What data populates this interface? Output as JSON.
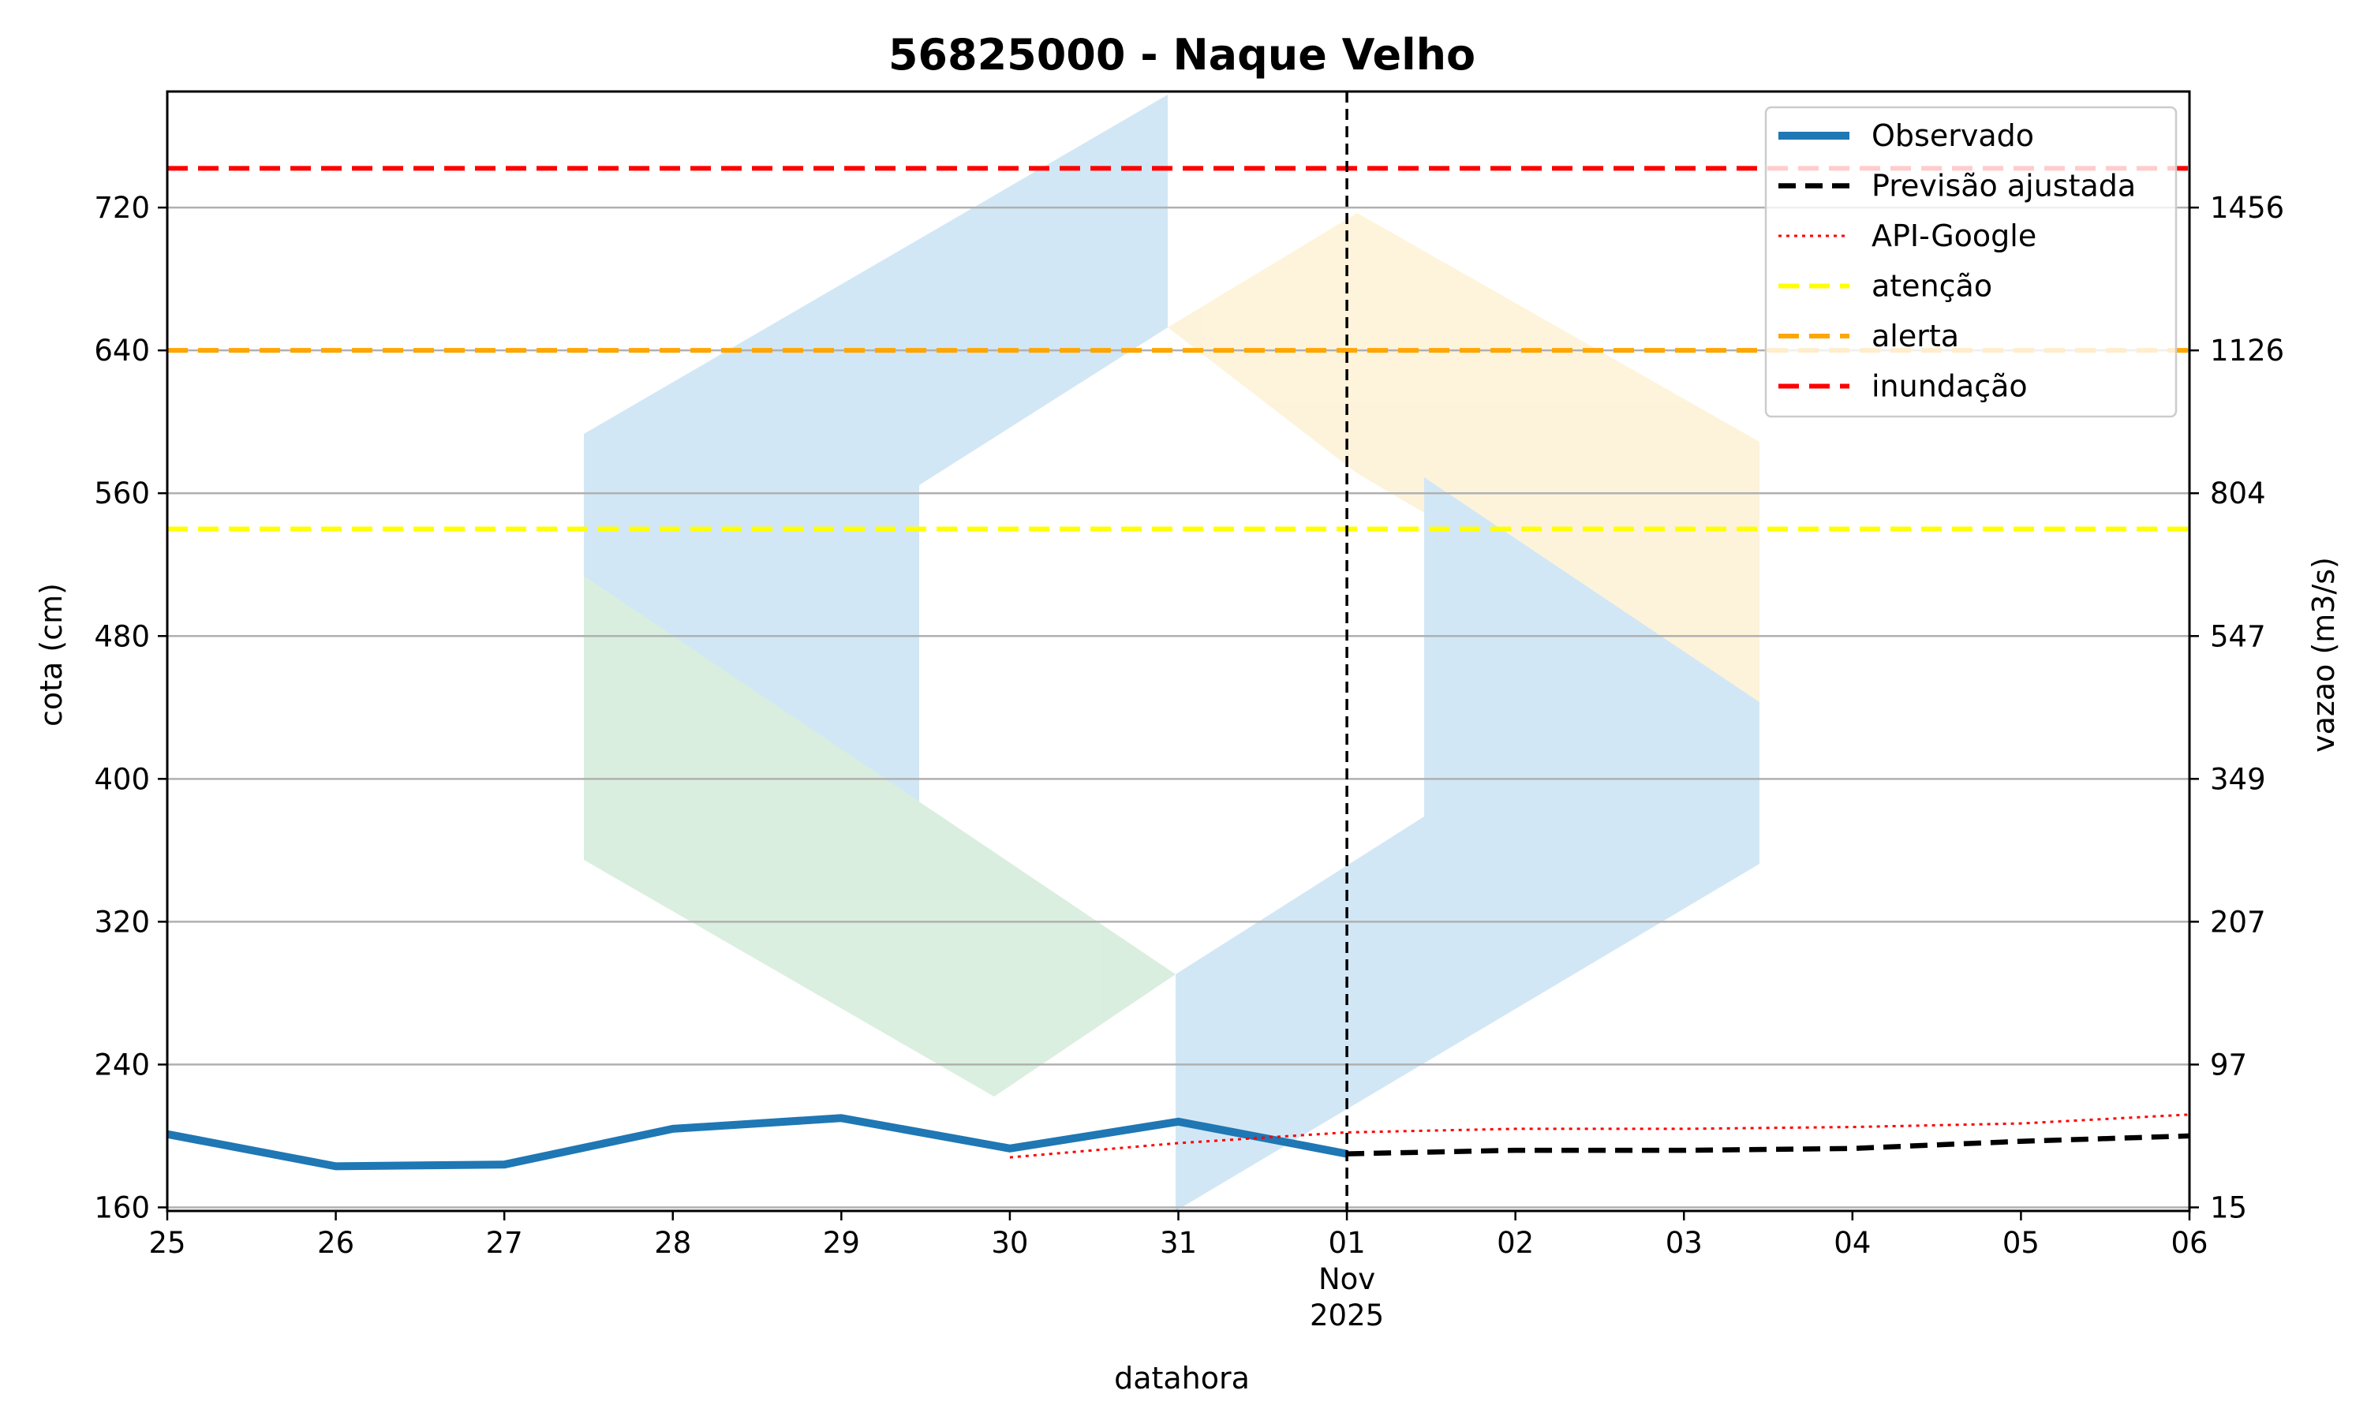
{
  "chart_data": {
    "type": "line",
    "title": "56825000 - Naque Velho",
    "xlabel": "datahora",
    "ylabel": "cota (cm)",
    "y2label": "vazao (m3/s)",
    "ylim": [
      158,
      785
    ],
    "xlim": [
      0,
      12
    ],
    "x_ticks": [
      {
        "x": 0,
        "label": "25"
      },
      {
        "x": 1,
        "label": "26"
      },
      {
        "x": 2,
        "label": "27"
      },
      {
        "x": 3,
        "label": "28"
      },
      {
        "x": 4,
        "label": "29"
      },
      {
        "x": 5,
        "label": "30"
      },
      {
        "x": 6,
        "label": "31"
      },
      {
        "x": 7,
        "label": "01",
        "sub1": "Nov",
        "sub2": "2025"
      },
      {
        "x": 8,
        "label": "02"
      },
      {
        "x": 9,
        "label": "03"
      },
      {
        "x": 10,
        "label": "04"
      },
      {
        "x": 11,
        "label": "05"
      },
      {
        "x": 12,
        "label": "06"
      }
    ],
    "y_ticks": [
      160,
      240,
      320,
      400,
      480,
      560,
      640,
      720
    ],
    "y2_ticks": [
      "15",
      "97",
      "207",
      "349",
      "547",
      "804",
      "1126",
      "1456"
    ],
    "grid": "horizontal",
    "legend_position": "top-right",
    "forecast_start_x": 7,
    "series": [
      {
        "name": "Observado",
        "color": "#1f77b4",
        "style": "solid",
        "points": [
          [
            0,
            201
          ],
          [
            1,
            183
          ],
          [
            2,
            184
          ],
          [
            3,
            204
          ],
          [
            4,
            210
          ],
          [
            5,
            193
          ],
          [
            6,
            208
          ],
          [
            7,
            190
          ]
        ]
      },
      {
        "name": "Previsão ajustada",
        "color": "#000000",
        "style": "dashed",
        "points": [
          [
            7,
            190
          ],
          [
            8,
            192
          ],
          [
            9,
            192
          ],
          [
            10,
            193
          ],
          [
            11,
            197
          ],
          [
            12,
            200
          ]
        ]
      },
      {
        "name": "API-Google",
        "color": "#ff0000",
        "style": "dotted",
        "points": [
          [
            5,
            188
          ],
          [
            6,
            196
          ],
          [
            7,
            202
          ],
          [
            8,
            204
          ],
          [
            9,
            204
          ],
          [
            10,
            205
          ],
          [
            11,
            207
          ],
          [
            12,
            212
          ]
        ]
      }
    ],
    "thresholds": [
      {
        "name": "atenção",
        "value": 540,
        "color": "#ffff00"
      },
      {
        "name": "alerta",
        "value": 640,
        "color": "#ffa500"
      },
      {
        "name": "inundação",
        "value": 742,
        "color": "#ff0000"
      }
    ]
  }
}
